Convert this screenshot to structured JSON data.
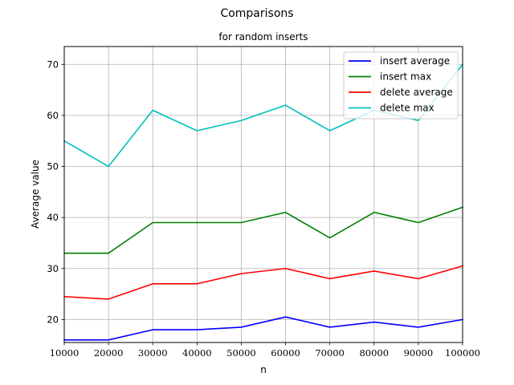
{
  "chart_data": {
    "type": "line",
    "title": "Comparisons",
    "subtitle": "for random inserts",
    "xlabel": "n",
    "ylabel": "Average value",
    "x": [
      10000,
      20000,
      30000,
      40000,
      50000,
      60000,
      70000,
      80000,
      90000,
      100000
    ],
    "xlim": [
      10000,
      100000
    ],
    "ylim": [
      15.5,
      73.5
    ],
    "xticks": [
      10000,
      20000,
      30000,
      40000,
      50000,
      60000,
      70000,
      80000,
      90000,
      100000
    ],
    "yticks": [
      20,
      30,
      40,
      50,
      60,
      70
    ],
    "grid": true,
    "legend_position": "top-right",
    "series": [
      {
        "name": "insert average",
        "color": "#0000ff",
        "values": [
          16,
          16,
          18,
          18,
          18.5,
          20.5,
          18.5,
          19.5,
          18.5,
          20
        ]
      },
      {
        "name": "insert max",
        "color": "#008000",
        "values": [
          33,
          33,
          39,
          39,
          39,
          41,
          36,
          41,
          39,
          42
        ]
      },
      {
        "name": "delete average",
        "color": "#ff0000",
        "values": [
          24.5,
          24,
          27,
          27,
          29,
          30,
          28,
          29.5,
          28,
          30.5
        ]
      },
      {
        "name": "delete max",
        "color": "#00bfbf",
        "values": [
          55,
          50,
          61,
          57,
          59,
          62,
          57,
          61,
          59,
          70
        ]
      }
    ]
  }
}
